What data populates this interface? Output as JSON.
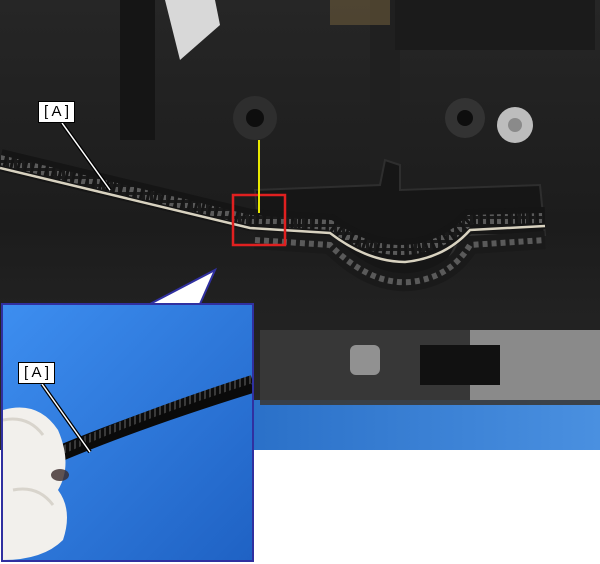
{
  "labels": {
    "main_callout": "[ A ]",
    "inset_callout": "[ A ]"
  },
  "colors": {
    "highlight_box": "#e02020",
    "indicator_line": "#e8e800",
    "inset_border": "#3030a0",
    "inset_background": "#2a7ad8"
  },
  "icons": {
    "main": "timing-belt-photo",
    "inset": "belt-in-hand-photo"
  }
}
